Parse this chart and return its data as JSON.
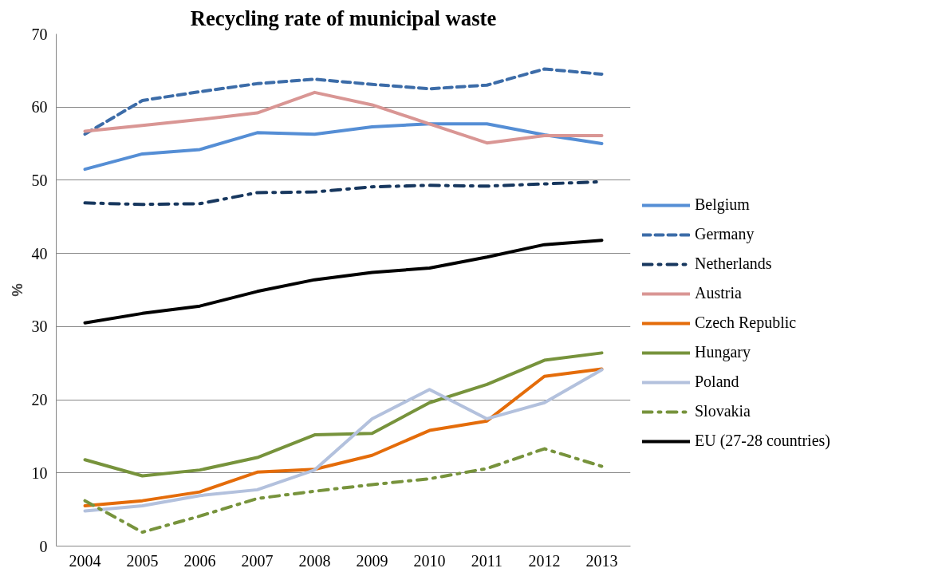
{
  "chart_data": {
    "type": "line",
    "title": "Recycling rate of municipal waste",
    "ylabel": "%",
    "categories": [
      "2004",
      "2005",
      "2006",
      "2007",
      "2008",
      "2009",
      "2010",
      "2011",
      "2012",
      "2013"
    ],
    "ylim": [
      0,
      70
    ],
    "yticks": [
      0,
      10,
      20,
      30,
      40,
      50,
      60,
      70
    ],
    "grid": "y",
    "legend": "right",
    "marker": "none",
    "series": [
      {
        "name": "Belgium",
        "color": "#558ed5",
        "line_style": "solid",
        "values": [
          51.5,
          53.6,
          54.2,
          56.5,
          56.3,
          57.3,
          57.7,
          57.7,
          56.2,
          55.0
        ]
      },
      {
        "name": "Germany",
        "color": "#3c6ca8",
        "line_style": "dashed",
        "values": [
          56.3,
          60.9,
          62.1,
          63.2,
          63.8,
          63.1,
          62.5,
          63.0,
          65.2,
          64.5
        ]
      },
      {
        "name": "Netherlands",
        "color": "#17375e",
        "line_style": "dashdot",
        "values": [
          46.9,
          46.7,
          46.8,
          48.3,
          48.4,
          49.1,
          49.3,
          49.2,
          49.5,
          49.8
        ]
      },
      {
        "name": "Austria",
        "color": "#d99694",
        "line_style": "solid",
        "values": [
          56.7,
          57.5,
          58.3,
          59.2,
          62.0,
          60.3,
          57.7,
          55.1,
          56.1,
          56.1
        ]
      },
      {
        "name": "Czech Republic",
        "color": "#e46c0a",
        "line_style": "solid",
        "values": [
          5.5,
          6.2,
          7.4,
          10.1,
          10.5,
          12.4,
          15.8,
          17.1,
          23.2,
          24.2
        ]
      },
      {
        "name": "Hungary",
        "color": "#77933c",
        "line_style": "solid",
        "values": [
          11.8,
          9.6,
          10.4,
          12.1,
          15.2,
          15.4,
          19.6,
          22.1,
          25.4,
          26.4
        ]
      },
      {
        "name": "Poland",
        "color": "#b3c1dd",
        "line_style": "solid",
        "values": [
          4.8,
          5.5,
          6.9,
          7.7,
          10.4,
          17.4,
          21.4,
          17.4,
          19.6,
          24.1
        ]
      },
      {
        "name": "Slovakia",
        "color": "#77933c",
        "line_style": "dashdot",
        "values": [
          6.2,
          1.9,
          4.1,
          6.5,
          7.5,
          8.4,
          9.2,
          10.6,
          13.3,
          10.9
        ]
      },
      {
        "name": "EU (27-28 countries)",
        "color": "#000000",
        "line_style": "solid",
        "values": [
          30.5,
          31.8,
          32.8,
          34.8,
          36.4,
          37.4,
          38.0,
          39.5,
          41.2,
          41.8
        ]
      }
    ]
  }
}
